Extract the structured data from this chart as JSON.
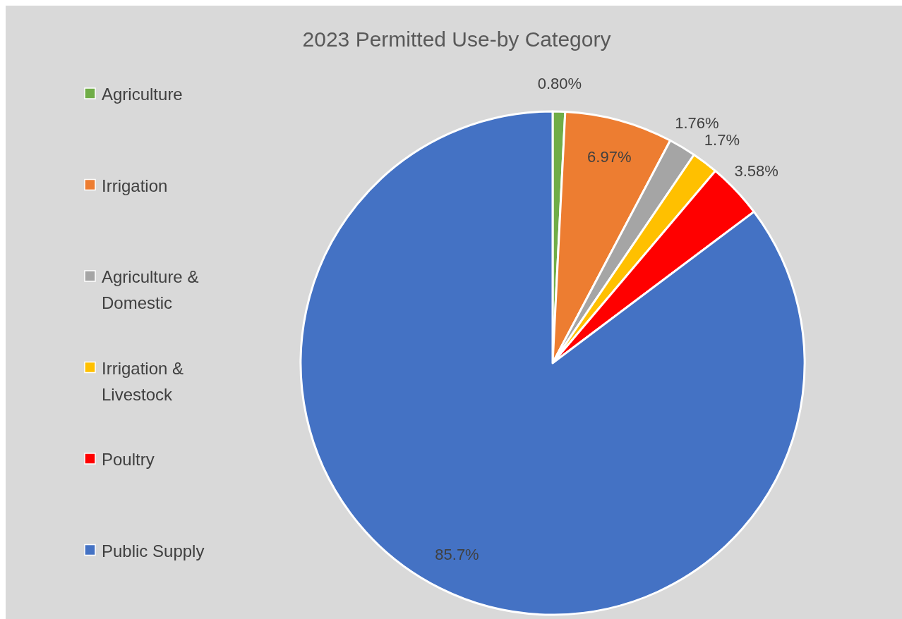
{
  "chart_data": {
    "type": "pie",
    "title": "2023 Permitted Use-by Category",
    "categories": [
      "Agriculture",
      "Irrigation",
      "Agriculture & Domestic",
      "Irrigation & Livestock",
      "Poultry",
      "Public Supply"
    ],
    "values": [
      0.8,
      6.97,
      1.76,
      1.7,
      3.58,
      85.7
    ],
    "value_labels": [
      "0.80%",
      "6.97%",
      "1.76%",
      "1.7%",
      "3.58%",
      "85.7%"
    ],
    "colors": [
      "#70ad47",
      "#ed7d31",
      "#a5a5a5",
      "#ffc000",
      "#ff0000",
      "#4472c4"
    ],
    "legend": "left"
  }
}
